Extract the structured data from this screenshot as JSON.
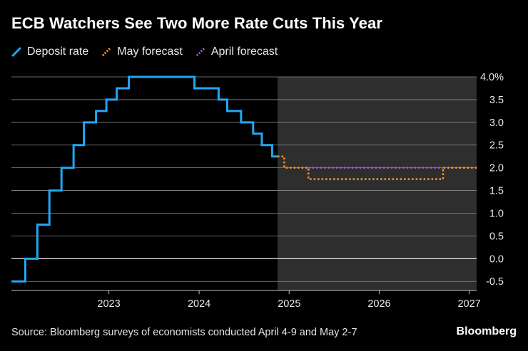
{
  "title": "ECB Watchers See Two More Rate Cuts This Year",
  "legend": [
    {
      "label": "Deposit rate",
      "color": "#1fa8f5"
    },
    {
      "label": "May forecast",
      "color": "#ff9d2e"
    },
    {
      "label": "April forecast",
      "color": "#a35fd6"
    }
  ],
  "source": "Source: Bloomberg surveys of economists conducted April 4-9 and May 2-7",
  "brand": "Bloomberg",
  "chart_data": {
    "type": "line",
    "title": "ECB Watchers See Two More Rate Cuts This Year",
    "xlabel": "",
    "ylabel": "",
    "x_ticks": [
      "2023",
      "2024",
      "2025",
      "2026",
      "2027"
    ],
    "y_ticks": [
      "4.0%",
      "3.5",
      "3.0",
      "2.5",
      "2.0",
      "1.5",
      "1.0",
      "0.5",
      "0.0",
      "-0.5"
    ],
    "xlim": [
      "2022-06-01",
      "2027-07-31"
    ],
    "ylim": [
      -0.7,
      4.0
    ],
    "grid": true,
    "legend_position": "top-left",
    "shaded_region": {
      "start": "2025-05-15",
      "end": "2027-07-31",
      "color": "#2e2e2e"
    },
    "series": [
      {
        "name": "Deposit rate",
        "color": "#1fa8f5",
        "style": "step-solid",
        "points": [
          [
            "2022-06-01",
            -0.5
          ],
          [
            "2022-07-27",
            0.0
          ],
          [
            "2022-09-14",
            0.75
          ],
          [
            "2022-11-02",
            1.5
          ],
          [
            "2022-12-21",
            2.0
          ],
          [
            "2023-02-08",
            2.5
          ],
          [
            "2023-03-22",
            3.0
          ],
          [
            "2023-05-10",
            3.25
          ],
          [
            "2023-06-21",
            3.5
          ],
          [
            "2023-08-02",
            3.75
          ],
          [
            "2023-09-20",
            4.0
          ],
          [
            "2024-06-12",
            3.75
          ],
          [
            "2024-09-18",
            3.5
          ],
          [
            "2024-10-23",
            3.25
          ],
          [
            "2024-12-18",
            3.0
          ],
          [
            "2025-02-05",
            2.75
          ],
          [
            "2025-03-12",
            2.5
          ],
          [
            "2025-04-23",
            2.25
          ],
          [
            "2025-05-15",
            2.25
          ]
        ]
      },
      {
        "name": "May forecast",
        "color": "#ff9d2e",
        "style": "step-dotted",
        "points": [
          [
            "2025-05-15",
            2.25
          ],
          [
            "2025-06-11",
            2.0
          ],
          [
            "2025-09-17",
            1.75
          ],
          [
            "2027-03-17",
            2.0
          ],
          [
            "2027-07-31",
            2.0
          ]
        ]
      },
      {
        "name": "April forecast",
        "color": "#a35fd6",
        "style": "step-dotted",
        "points": [
          [
            "2025-09-17",
            2.0
          ],
          [
            "2027-03-17",
            2.0
          ]
        ]
      }
    ]
  }
}
